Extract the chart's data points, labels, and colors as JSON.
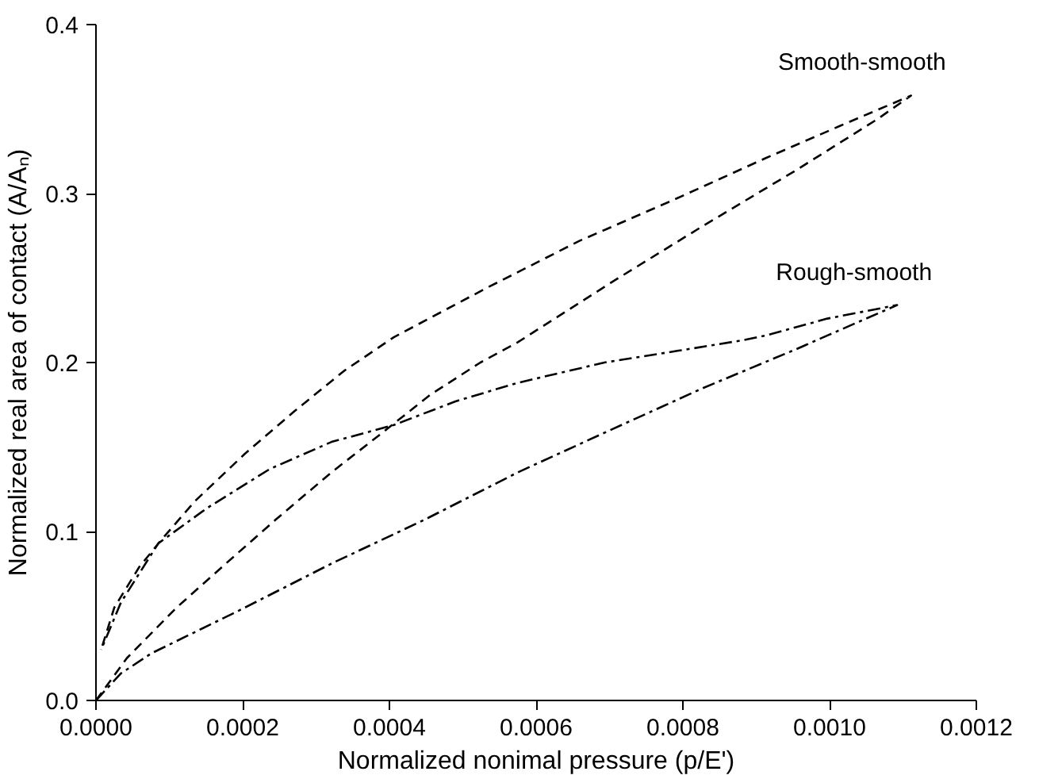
{
  "chart_data": {
    "type": "line",
    "xlabel": "Normalized nonimal pressure (p/E')",
    "ylabel": "Normalized real area of contact (A/Aₙ)",
    "xlim": [
      0,
      0.0012
    ],
    "ylim": [
      0,
      0.4
    ],
    "xticks": [
      {
        "value": 0,
        "label": "0.0000"
      },
      {
        "value": 0.0002,
        "label": "0.0002"
      },
      {
        "value": 0.0004,
        "label": "0.0004"
      },
      {
        "value": 0.0006,
        "label": "0.0006"
      },
      {
        "value": 0.0008,
        "label": "0.0008"
      },
      {
        "value": 0.001,
        "label": "0.0010"
      },
      {
        "value": 0.0012,
        "label": "0.0012"
      }
    ],
    "yticks": [
      {
        "value": 0,
        "label": "0.0"
      },
      {
        "value": 0.1,
        "label": "0.1"
      },
      {
        "value": 0.2,
        "label": "0.2"
      },
      {
        "value": 0.3,
        "label": "0.3"
      },
      {
        "value": 0.4,
        "label": "0.4"
      }
    ],
    "grid": false,
    "legend": false,
    "marker": "none",
    "series": [
      {
        "name": "Smooth-smooth",
        "color": "#000000",
        "line_style": "dashed",
        "x": [
          0,
          4.2e-05,
          0.00011,
          0.000177,
          0.000245,
          0.000321,
          0.000389,
          0.000456,
          0.000524,
          0.000575,
          0.000701,
          0.000828,
          0.000955,
          0.001065,
          0.001111,
          0.001014,
          0.000913,
          0.000786,
          0.000659,
          0.000532,
          0.000406,
          0.000338,
          0.00027,
          0.000203,
          0.000135,
          8.9e-05,
          5.9e-05,
          2.5e-05,
          7e-06
        ],
        "values": [
          0,
          0.025,
          0.055,
          0.081,
          0.107,
          0.135,
          0.158,
          0.181,
          0.2,
          0.212,
          0.247,
          0.281,
          0.314,
          0.344,
          0.358,
          0.34,
          0.321,
          0.296,
          0.272,
          0.244,
          0.215,
          0.195,
          0.171,
          0.146,
          0.118,
          0.095,
          0.079,
          0.055,
          0.03
        ]
      },
      {
        "name": "Rough-smooth",
        "color": "#000000",
        "line_style": "dashdot",
        "x": [
          0,
          3.4e-05,
          7.6e-05,
          0.000194,
          0.000321,
          0.000448,
          0.000575,
          0.000701,
          0.000828,
          0.000955,
          0.000997,
          0.001092,
          0.000997,
          0.000913,
          0.000879,
          0.000794,
          0.000693,
          0.000575,
          0.00049,
          0.000406,
          0.000321,
          0.000237,
          0.000152,
          8.5e-05,
          3.4e-05,
          7e-06
        ],
        "values": [
          0,
          0.016,
          0.028,
          0.053,
          0.081,
          0.107,
          0.135,
          0.16,
          0.185,
          0.208,
          0.216,
          0.234,
          0.226,
          0.216,
          0.213,
          0.207,
          0.2,
          0.188,
          0.177,
          0.163,
          0.153,
          0.137,
          0.114,
          0.093,
          0.058,
          0.03
        ]
      }
    ]
  }
}
